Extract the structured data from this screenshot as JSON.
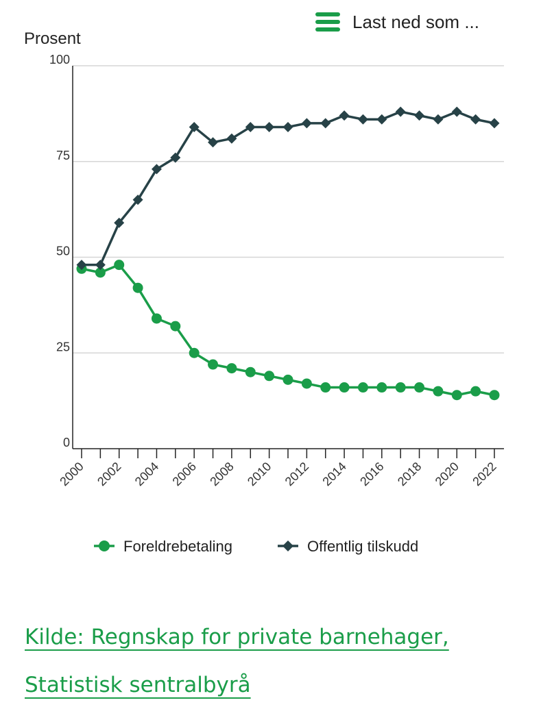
{
  "header": {
    "download_label": "Last ned som ...",
    "menu_icon": "hamburger-menu-icon"
  },
  "chart_data": {
    "type": "line",
    "title": "",
    "ylabel": "Prosent",
    "xlabel": "",
    "ylim": [
      0,
      100
    ],
    "yticks": [
      0,
      25,
      50,
      75,
      100
    ],
    "x": [
      2000,
      2001,
      2002,
      2003,
      2004,
      2005,
      2006,
      2007,
      2008,
      2009,
      2010,
      2011,
      2012,
      2013,
      2014,
      2015,
      2016,
      2017,
      2018,
      2019,
      2020,
      2021,
      2022
    ],
    "xticklabels": [
      "2000",
      "2002",
      "2004",
      "2006",
      "2008",
      "2010",
      "2012",
      "2014",
      "2016",
      "2018",
      "2020",
      "2022"
    ],
    "grid": true,
    "series": [
      {
        "name": "Foreldrebetaling",
        "color": "#1a9d49",
        "marker": "circle",
        "values": [
          47,
          46,
          48,
          42,
          34,
          32,
          25,
          22,
          21,
          20,
          19,
          18,
          17,
          16,
          16,
          16,
          16,
          16,
          16,
          15,
          14,
          15,
          14
        ]
      },
      {
        "name": "Offentlig tilskudd",
        "color": "#274247",
        "marker": "diamond",
        "values": [
          48,
          48,
          59,
          65,
          73,
          76,
          84,
          80,
          81,
          84,
          84,
          84,
          85,
          85,
          87,
          86,
          86,
          88,
          87,
          86,
          88,
          86,
          85
        ]
      }
    ],
    "legend": "bottom"
  },
  "source": {
    "line1": "Kilde: Regnskap for private barnehager,",
    "line2": "Statistisk sentralbyrå"
  }
}
